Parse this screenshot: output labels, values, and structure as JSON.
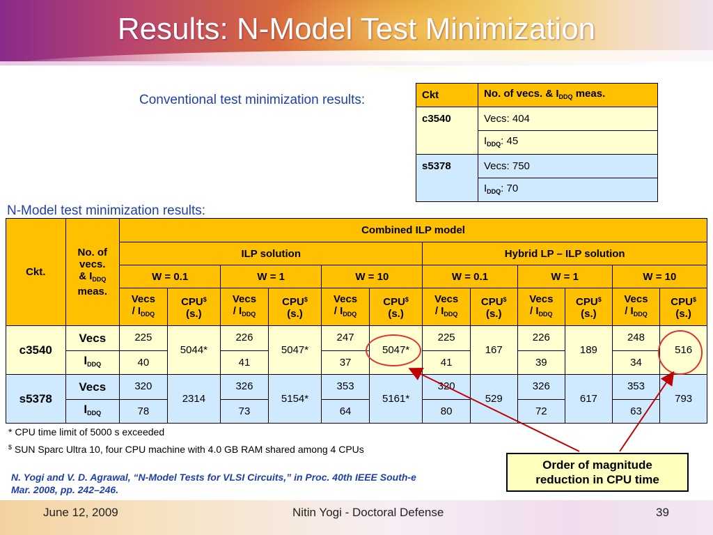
{
  "title": "Results: N-Model Test Minimization",
  "conv_label": "Conventional test minimization results:",
  "conv_table": {
    "h_ckt": "Ckt",
    "h_meas_a": "No. of vecs. & I",
    "h_meas_sub": "DDQ",
    "h_meas_b": " meas.",
    "rows": [
      {
        "ckt": "c3540",
        "vecs": "Vecs: 404",
        "iddq_pre": "I",
        "iddq_sub": "DDQ",
        "iddq_val": ": 45"
      },
      {
        "ckt": "s5378",
        "vecs": "Vecs: 750",
        "iddq_pre": "I",
        "iddq_sub": "DDQ",
        "iddq_val": ": 70"
      }
    ]
  },
  "nmodel_label": "N-Model test minimization results:",
  "nmodel_table": {
    "h_ckt": "Ckt.",
    "h_nov_a": "No. of",
    "h_nov_b": "vecs.",
    "h_nov_c": "& I",
    "h_nov_sub": "DDQ",
    "h_nov_d": "meas.",
    "h_combined": "Combined ILP model",
    "h_ilp": "ILP solution",
    "h_hybrid": "Hybrid LP – ILP solution",
    "w_labels": [
      "W = 0.1",
      "W = 1",
      "W = 10",
      "W = 0.1",
      "W = 1",
      "W = 10"
    ],
    "col_vecs_a": "Vecs",
    "col_vecs_b": "/ I",
    "col_vecs_sub": "DDQ",
    "col_cpu_a": "CPU",
    "col_cpu_sup": "$",
    "col_cpu_b": "(s.)",
    "rows": [
      {
        "ckt": "c3540",
        "label_vecs": "Vecs",
        "label_iddq": "I",
        "label_iddq_sub": "DDQ",
        "groups": [
          {
            "vecs": "225",
            "iddq": "40",
            "cpu": "5044*"
          },
          {
            "vecs": "226",
            "iddq": "41",
            "cpu": "5047*"
          },
          {
            "vecs": "247",
            "iddq": "37",
            "cpu": "5047*"
          },
          {
            "vecs": "225",
            "iddq": "41",
            "cpu": "167"
          },
          {
            "vecs": "226",
            "iddq": "39",
            "cpu": "189"
          },
          {
            "vecs": "248",
            "iddq": "34",
            "cpu": "516"
          }
        ]
      },
      {
        "ckt": "s5378",
        "label_vecs": "Vecs",
        "label_iddq": "I",
        "label_iddq_sub": "DDQ",
        "groups": [
          {
            "vecs": "320",
            "iddq": "78",
            "cpu": "2314"
          },
          {
            "vecs": "326",
            "iddq": "73",
            "cpu": "5154*"
          },
          {
            "vecs": "353",
            "iddq": "64",
            "cpu": "5161*"
          },
          {
            "vecs": "320",
            "iddq": "80",
            "cpu": "529"
          },
          {
            "vecs": "326",
            "iddq": "72",
            "cpu": "617"
          },
          {
            "vecs": "353",
            "iddq": "63",
            "cpu": "793"
          }
        ]
      }
    ]
  },
  "note1": "* CPU time limit of 5000 s exceeded",
  "note2_sup": "$",
  "note2": " SUN Sparc Ultra 10, four CPU machine with 4.0 GB RAM shared among 4 CPUs",
  "citation": "N. Yogi and V. D. Agrawal, “N-Model Tests for VLSI Circuits,” in Proc. 40th IEEE South-e\nMar. 2008, pp. 242–246.",
  "callout": "Order of  magnitude\nreduction in CPU time",
  "footer": {
    "date": "June 12, 2009",
    "center": "Nitin Yogi - Doctoral Defense",
    "page": "39"
  },
  "colors": {
    "header_gold": "#ffc000",
    "row_yellow": "#ffffd2",
    "row_blue": "#cfeaff",
    "accent_text": "#1f3fa8",
    "callout_bg": "#ffffbe",
    "arrow": "#c00000"
  }
}
